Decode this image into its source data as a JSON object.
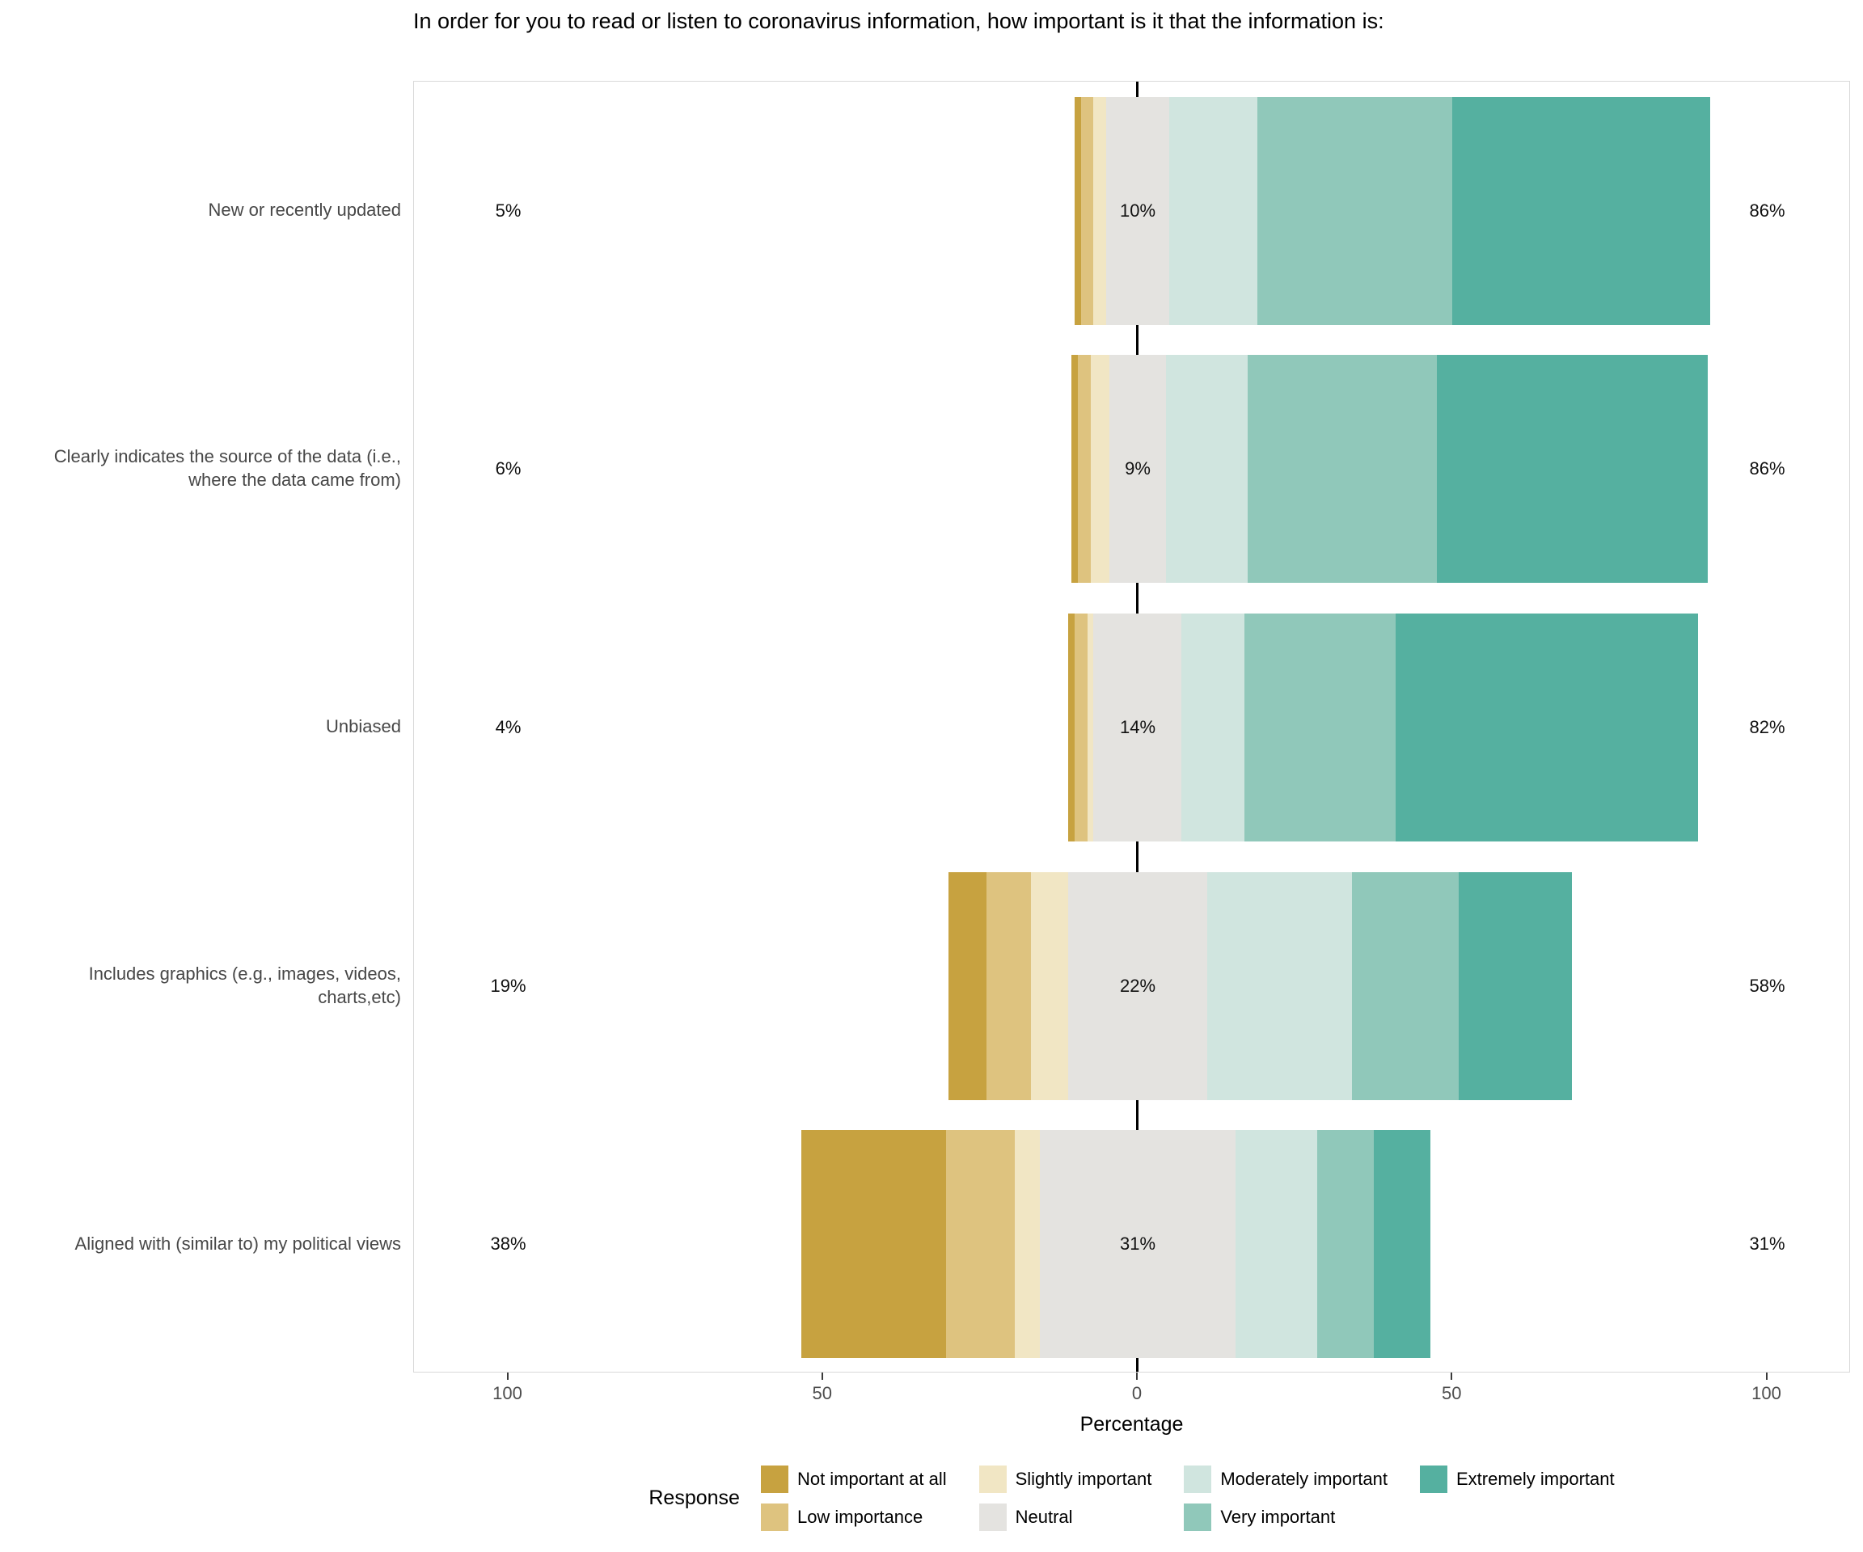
{
  "title": "In order for you to read or listen to coronavirus information, how important is it that the information is:",
  "chart_data": {
    "type": "bar",
    "subtype": "diverging_stacked_likert",
    "title": "In order for you to read or listen to coronavirus information, how important is it that the information is:",
    "legend_title": "Response",
    "axis": {
      "xlabel": "Percentage",
      "ticks": [
        {
          "pos": -100,
          "label": "100"
        },
        {
          "pos": -50,
          "label": "50"
        },
        {
          "pos": 0,
          "label": "0"
        },
        {
          "pos": 50,
          "label": "50"
        },
        {
          "pos": 100,
          "label": "100"
        }
      ],
      "xlim": [
        -115,
        115
      ],
      "grid": false,
      "legend_position": "bottom"
    },
    "categories": [
      "New or recently updated",
      "Clearly indicates the source of the data (i.e., where the data came from)",
      "Unbiased",
      "Includes graphics (e.g., images, videos, charts,etc)",
      "Aligned with (similar to) my political views"
    ],
    "series": [
      {
        "name": "Not important at all",
        "color": "#C7A240",
        "values": [
          1,
          1,
          1,
          6,
          23
        ]
      },
      {
        "name": "Low importance",
        "color": "#DEC37F",
        "values": [
          2,
          2,
          2,
          7,
          11
        ]
      },
      {
        "name": "Slightly important",
        "color": "#F1E6C4",
        "values": [
          2,
          3,
          1,
          6,
          4
        ]
      },
      {
        "name": "Neutral",
        "color": "#E4E3E0",
        "values": [
          10,
          9,
          14,
          22,
          31
        ]
      },
      {
        "name": "Moderately important",
        "color": "#D0E5DF",
        "values": [
          14,
          13,
          10,
          23,
          13
        ]
      },
      {
        "name": "Very important",
        "color": "#90C8BA",
        "values": [
          31,
          30,
          24,
          17,
          9
        ]
      },
      {
        "name": "Extremely important",
        "color": "#55B0A0",
        "values": [
          41,
          43,
          48,
          18,
          9
        ]
      }
    ],
    "summary_labels": {
      "low": [
        "5%",
        "6%",
        "4%",
        "19%",
        "38%"
      ],
      "neutral": [
        "10%",
        "9%",
        "14%",
        "22%",
        "31%"
      ],
      "high": [
        "86%",
        "86%",
        "82%",
        "58%",
        "31%"
      ]
    }
  }
}
